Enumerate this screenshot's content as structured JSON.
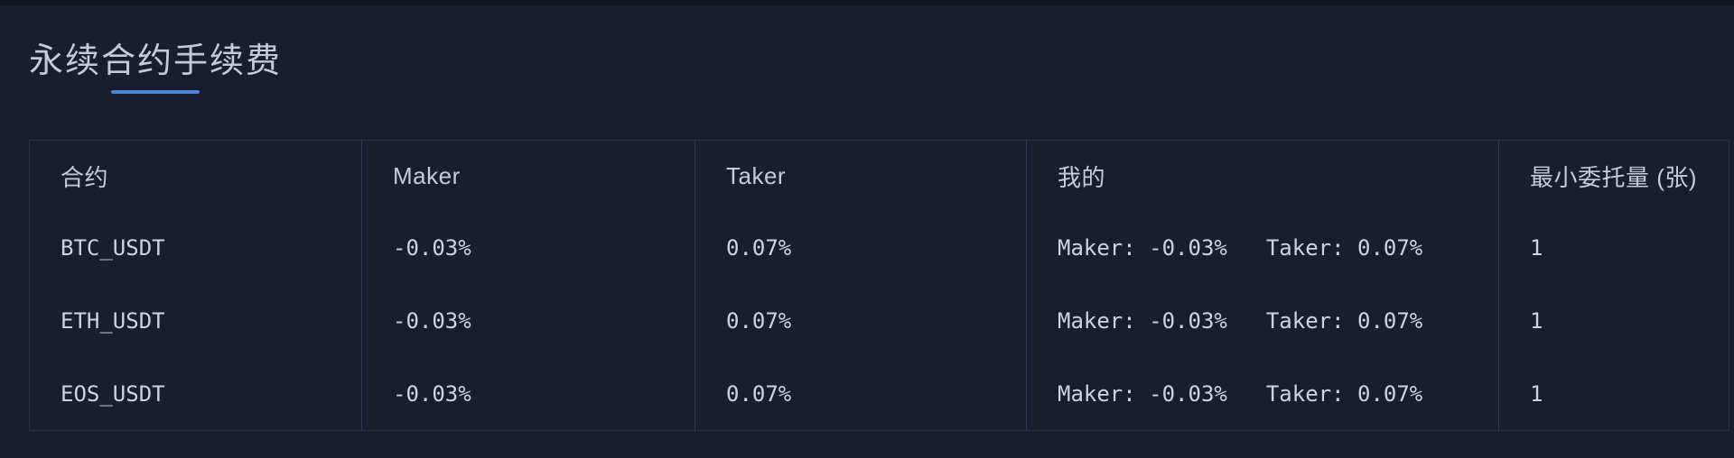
{
  "page": {
    "title": "永续合约手续费"
  },
  "table": {
    "columns": [
      {
        "label": "合约"
      },
      {
        "label": "Maker"
      },
      {
        "label": "Taker"
      },
      {
        "label": "我的"
      },
      {
        "label": "最小委托量 (张)"
      }
    ],
    "rows": [
      {
        "contract": "BTC_USDT",
        "maker": "-0.03%",
        "taker": "0.07%",
        "my_maker": "Maker: -0.03%",
        "my_taker": "Taker: 0.07%",
        "min_order": "1"
      },
      {
        "contract": "ETH_USDT",
        "maker": "-0.03%",
        "taker": "0.07%",
        "my_maker": "Maker: -0.03%",
        "my_taker": "Taker: 0.07%",
        "min_order": "1"
      },
      {
        "contract": "EOS_USDT",
        "maker": "-0.03%",
        "taker": "0.07%",
        "my_maker": "Maker: -0.03%",
        "my_taker": "Taker: 0.07%",
        "min_order": "1"
      }
    ]
  },
  "colors": {
    "page-bg": "#191e2e",
    "strip-bg": "#12151f",
    "border": "#223048",
    "divider": "#2a3a57",
    "accent": "#4a86d8",
    "text-title": "#c4cad8",
    "text-header": "#c5cbd9",
    "text-data": "#ced3df"
  }
}
